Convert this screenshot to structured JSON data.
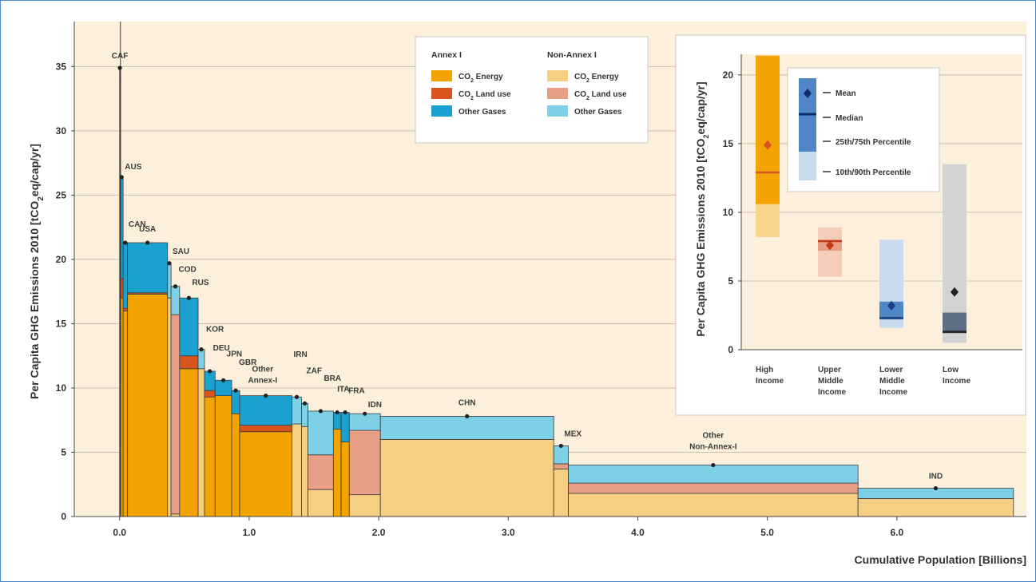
{
  "chart_data": {
    "type": "bar",
    "subtype": "variable-width stacked bar",
    "xlabel": "Cumulative Population [Billions]",
    "ylabel": "Per Capita GHG Emissions 2010 [tCO2eq/cap/yr]",
    "xlim": [
      -0.35,
      7.0
    ],
    "ylim": [
      0,
      38.5
    ],
    "xticks": [
      0.0,
      1.0,
      2.0,
      3.0,
      4.0,
      5.0,
      6.0
    ],
    "xtick_labels": [
      "0.0",
      "1.0",
      "2.0",
      "3.0",
      "4.0",
      "5.0",
      "6.0"
    ],
    "yticks": [
      0,
      5,
      10,
      15,
      20,
      25,
      30,
      35
    ],
    "yticks_labels": [
      "0",
      "5",
      "10",
      "15",
      "20",
      "25",
      "30",
      "35"
    ],
    "grid": "horizontal",
    "colors": {
      "annex_energy": "#f2a300",
      "annex_land": "#d9541e",
      "annex_other": "#1ba1d0",
      "nonannex_energy": "#f7cf82",
      "nonannex_land": "#e99e86",
      "nonannex_other": "#7ed0e6",
      "plot_bg": "#fcf0dc",
      "frame": "#4a86c8"
    },
    "legend": {
      "position": "top-center",
      "groups": [
        {
          "title": "Annex I",
          "items": [
            {
              "label": "CO",
              "sub": "2",
              "rest": " Energy",
              "color": "#f2a300"
            },
            {
              "label": "CO",
              "sub": "2",
              "rest": " Land use",
              "color": "#d9541e"
            },
            {
              "label": "Other Gases",
              "sub": "",
              "rest": "",
              "color": "#1ba1d0"
            }
          ]
        },
        {
          "title": "Non-Annex I",
          "items": [
            {
              "label": "CO",
              "sub": "2",
              "rest": " Energy",
              "color": "#f7cf82"
            },
            {
              "label": "CO",
              "sub": "2",
              "rest": " Land use",
              "color": "#e99e86"
            },
            {
              "label": "Other Gases",
              "sub": "",
              "rest": "",
              "color": "#7ed0e6"
            }
          ]
        }
      ]
    },
    "countries": [
      {
        "name": "CAF",
        "x0": 0.0,
        "x1": 0.004,
        "energy": 0.1,
        "land": 34.0,
        "other": 0.8,
        "group": "nonannex"
      },
      {
        "name": "AUS",
        "x0": 0.004,
        "x1": 0.027,
        "energy": 17.0,
        "land": 1.5,
        "other": 7.9,
        "group": "annex"
      },
      {
        "name": "CAN",
        "x0": 0.027,
        "x1": 0.061,
        "energy": 16.0,
        "land": 0.2,
        "other": 5.1,
        "group": "annex"
      },
      {
        "name": "USA",
        "x0": 0.061,
        "x1": 0.37,
        "energy": 17.3,
        "land": 0.1,
        "other": 3.9,
        "group": "annex"
      },
      {
        "name": "SAU",
        "x0": 0.37,
        "x1": 0.397,
        "energy": 17.0,
        "land": 0.0,
        "other": 2.7,
        "group": "nonannex"
      },
      {
        "name": "COD",
        "x0": 0.397,
        "x1": 0.463,
        "energy": 0.2,
        "land": 15.5,
        "other": 2.2,
        "group": "nonannex"
      },
      {
        "name": "RUS",
        "x0": 0.463,
        "x1": 0.606,
        "energy": 11.5,
        "land": 1.0,
        "other": 4.5,
        "group": "annex"
      },
      {
        "name": "KOR",
        "x0": 0.606,
        "x1": 0.655,
        "energy": 11.5,
        "land": 0.0,
        "other": 1.5,
        "group": "nonannex"
      },
      {
        "name": "DEU",
        "x0": 0.655,
        "x1": 0.737,
        "energy": 9.3,
        "land": 0.5,
        "other": 1.5,
        "group": "annex"
      },
      {
        "name": "JPN",
        "x0": 0.737,
        "x1": 0.865,
        "energy": 9.4,
        "land": 0.0,
        "other": 1.2,
        "group": "annex"
      },
      {
        "name": "GBR",
        "x0": 0.865,
        "x1": 0.927,
        "energy": 8.0,
        "land": 0.0,
        "other": 1.8,
        "group": "annex"
      },
      {
        "name": "Other Annex-I",
        "x0": 0.927,
        "x1": 1.33,
        "energy": 6.6,
        "land": 0.5,
        "other": 2.3,
        "group": "annex"
      },
      {
        "name": "IRN",
        "x0": 1.33,
        "x1": 1.404,
        "energy": 7.2,
        "land": 0.0,
        "other": 2.1,
        "group": "nonannex"
      },
      {
        "name": "ZAF",
        "x0": 1.404,
        "x1": 1.454,
        "energy": 7.0,
        "land": 0.0,
        "other": 1.8,
        "group": "nonannex"
      },
      {
        "name": "BRA",
        "x0": 1.454,
        "x1": 1.65,
        "energy": 2.1,
        "land": 2.7,
        "other": 3.4,
        "group": "nonannex"
      },
      {
        "name": "ITA",
        "x0": 1.65,
        "x1": 1.71,
        "energy": 6.8,
        "land": 0.0,
        "other": 1.3,
        "group": "annex"
      },
      {
        "name": "FRA",
        "x0": 1.71,
        "x1": 1.773,
        "energy": 5.8,
        "land": 0.0,
        "other": 2.3,
        "group": "annex"
      },
      {
        "name": "IDN",
        "x0": 1.773,
        "x1": 2.013,
        "energy": 1.7,
        "land": 5.0,
        "other": 1.3,
        "group": "nonannex"
      },
      {
        "name": "CHN",
        "x0": 2.013,
        "x1": 3.351,
        "energy": 6.0,
        "land": 0.0,
        "other": 1.8,
        "group": "nonannex"
      },
      {
        "name": "MEX",
        "x0": 3.351,
        "x1": 3.464,
        "energy": 3.7,
        "land": 0.4,
        "other": 1.4,
        "group": "nonannex"
      },
      {
        "name": "Other Non-Annex-I",
        "x0": 3.464,
        "x1": 5.7,
        "energy": 1.8,
        "land": 0.8,
        "other": 1.4,
        "group": "nonannex"
      },
      {
        "name": "IND",
        "x0": 5.7,
        "x1": 6.9,
        "energy": 1.4,
        "land": 0.0,
        "other": 0.8,
        "group": "nonannex"
      }
    ],
    "inset": {
      "type": "boxplot",
      "ylabel": "Per Capita GHG Emissions 2010 [tCO2eq/cap/yr]",
      "ylim": [
        0,
        21.5
      ],
      "yticks": [
        0,
        5,
        10,
        15,
        20
      ],
      "yticks_labels": [
        "0",
        "5",
        "10",
        "15",
        "20"
      ],
      "legend_items": [
        "Mean",
        "Median",
        "25th/75th Percentile",
        "10th/90th Percentile"
      ],
      "categories": [
        {
          "label_lines": [
            "High",
            "Income"
          ],
          "p10": 8.2,
          "p25": 10.6,
          "median": 12.9,
          "mean": 14.9,
          "p75": 21.4,
          "p90": 21.4,
          "color_dark": "#f2a300",
          "color_light": "#f9d58e",
          "mark": "#d9541e"
        },
        {
          "label_lines": [
            "Upper",
            "Middle",
            "Income"
          ],
          "p10": 5.3,
          "p25": 7.2,
          "median": 7.9,
          "mean": 7.6,
          "p75": 8.0,
          "p90": 8.9,
          "color_dark": "#e99e86",
          "color_light": "#f5cdb8",
          "mark": "#c43a1a"
        },
        {
          "label_lines": [
            "Lower",
            "Middle",
            "Income"
          ],
          "p10": 1.6,
          "p25": 2.2,
          "median": 2.3,
          "mean": 3.2,
          "p75": 3.5,
          "p90": 8.0,
          "color_dark": "#4f86c6",
          "color_light": "#c9dcef",
          "mark": "#1c3f82"
        },
        {
          "label_lines": [
            "Low",
            "Income"
          ],
          "p10": 0.5,
          "p25": 1.2,
          "median": 1.3,
          "mean": 4.2,
          "p75": 2.7,
          "p90": 13.5,
          "color_dark": "#5f6f85",
          "color_light": "#d3d3d3",
          "mark": "#222222"
        }
      ]
    }
  }
}
